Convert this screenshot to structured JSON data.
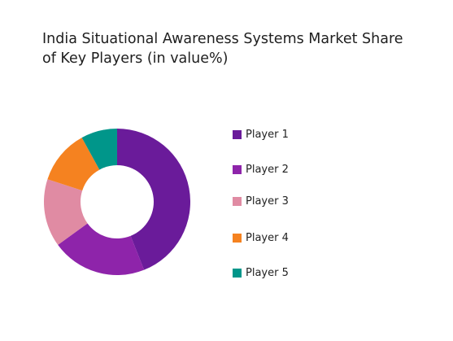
{
  "chart_data": {
    "type": "pie",
    "variant": "donut",
    "title_lines": [
      "India Situational Awareness Systems Market Share",
      "of Key Players (in value%)"
    ],
    "slices": [
      {
        "label": "Player 1",
        "value": 44,
        "color": "#6a1b9a"
      },
      {
        "label": "Player 2",
        "value": 21,
        "color": "#8e24aa"
      },
      {
        "label": "Player 3",
        "value": 15,
        "color": "#e08ba3"
      },
      {
        "label": "Player 4",
        "value": 12,
        "color": "#f58220"
      },
      {
        "label": "Player 5",
        "value": 8,
        "color": "#00968a"
      }
    ],
    "legend_position": "right"
  }
}
